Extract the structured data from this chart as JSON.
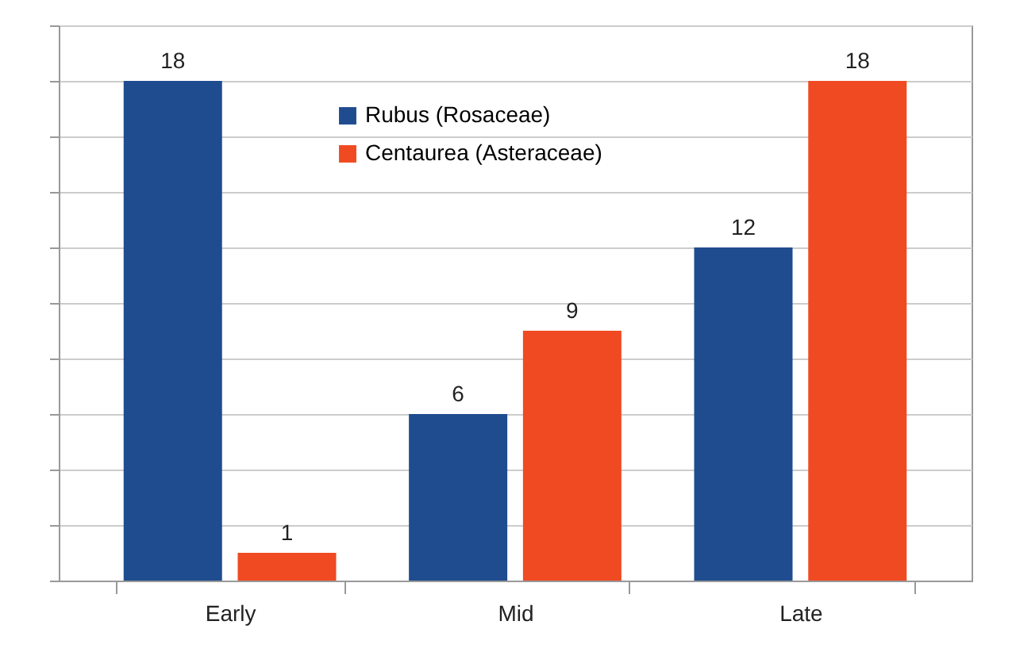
{
  "chart_data": {
    "type": "bar",
    "categories": [
      "Early",
      "Mid",
      "Late"
    ],
    "series": [
      {
        "name": "Rubus (Rosaceae)",
        "color": "#1f4c8f",
        "values": [
          18,
          6,
          12
        ]
      },
      {
        "name": "Centaurea (Asteraceae)",
        "color": "#f04a22",
        "values": [
          1,
          9,
          18
        ]
      }
    ],
    "ylim": [
      0,
      20
    ],
    "yticks": [
      {
        "value": 0,
        "label": null
      },
      {
        "value": 2,
        "label": null
      },
      {
        "value": 4,
        "label": null
      },
      {
        "value": 6,
        "label": null
      },
      {
        "value": 8,
        "label": null
      },
      {
        "value": 10,
        "label": null
      },
      {
        "value": 12,
        "label": null
      },
      {
        "value": 14,
        "label": null
      },
      {
        "value": 16,
        "label": null
      },
      {
        "value": 18,
        "label": null
      },
      {
        "value": 20,
        "label": null
      }
    ],
    "tick_labels": "x",
    "grid": "y",
    "legend": "top",
    "data_labels": true
  }
}
